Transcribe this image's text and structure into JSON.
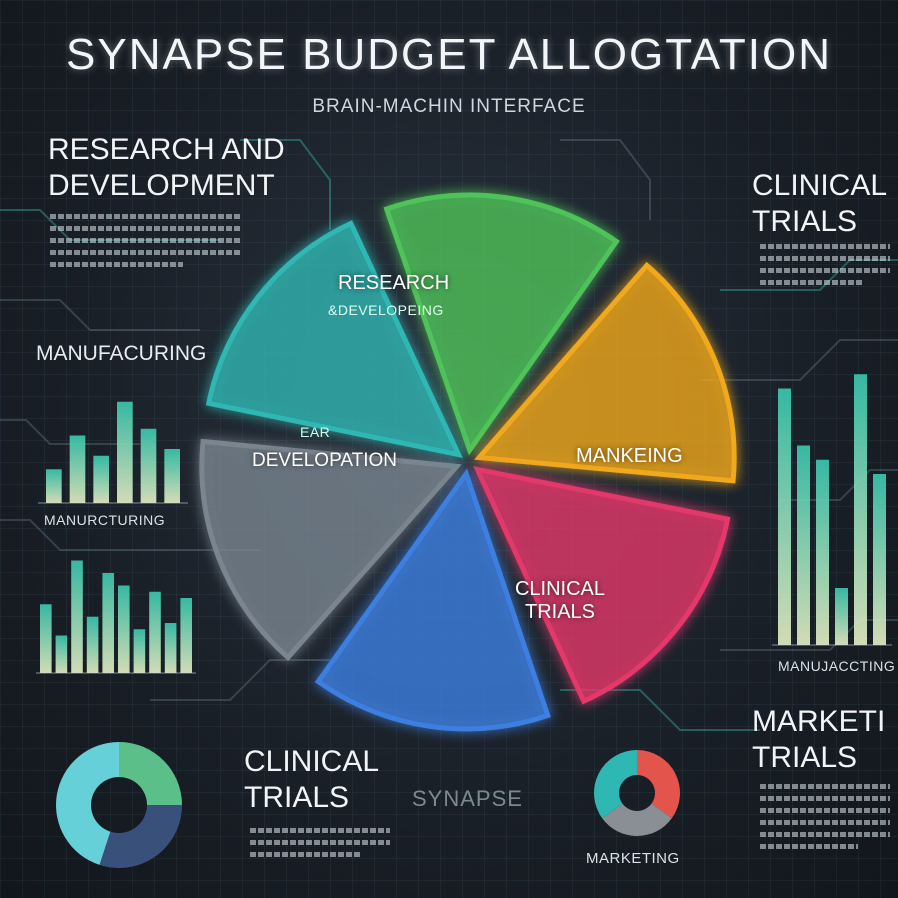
{
  "title": "SYNAPSE  BUDGET ALLOGTATION",
  "subtitle": "BRAIN-MACHIN INTERFACE",
  "labels": {
    "research_dev_heading": [
      "RESEARCH AND",
      "DEVELOPMENT"
    ],
    "clinical_trials_top": [
      "CLINICAL",
      "TRIALS"
    ],
    "manufacturing_left": "MANUFACURING",
    "manufacturing_bar_left": "MANURCTURING",
    "manufacturing_right": "MANUJACCTING",
    "marketing_trials": [
      "MARKETI",
      "TRIALS"
    ],
    "clinical_trials_bottom": [
      "CLINICAL",
      "TRIALS"
    ],
    "synapse_watermark": "SYNAPSE",
    "marketing_bottom": "MARKETING"
  },
  "colors": {
    "research": "#4fc35a",
    "orange": "#f0a81c",
    "marketing": "#e4386a",
    "clinical": "#3c7fe0",
    "circuit_slice": "#7a8590",
    "development": "#2fb7b3",
    "bar_gradient_top": "#39c9b0",
    "bar_gradient_bottom": "#e6f0c4"
  },
  "chart_data": [
    {
      "type": "pie",
      "slices": [
        {
          "label": "RESEARCH",
          "sublabel": "&DEVELOPEING",
          "value": 16.7
        },
        {
          "label": "",
          "value": 16.7
        },
        {
          "label": "MANKEING",
          "value": 16.7
        },
        {
          "label": "CLINICAL TRIALS",
          "value": 16.7
        },
        {
          "label": "",
          "value": 16.7
        },
        {
          "label": "DEVELOPATION",
          "sublabel": "EAR",
          "value": 16.5
        }
      ]
    },
    {
      "type": "bar",
      "label": "MANURCTURING",
      "values": [
        0.25,
        0.5,
        0.35,
        0.75,
        0.55,
        0.4
      ]
    },
    {
      "type": "bar",
      "values": [
        0.55,
        0.3,
        0.9,
        0.45,
        0.8,
        0.7,
        0.35,
        0.65,
        0.4,
        0.6
      ]
    },
    {
      "type": "bar",
      "label": "MANUJACCTING",
      "values": [
        0.9,
        0.7,
        0.65,
        0.2,
        0.95,
        0.6
      ]
    },
    {
      "type": "pie",
      "slices": [
        {
          "label": "",
          "value": 25,
          "color": "#5bbf8a"
        },
        {
          "label": "",
          "value": 30,
          "color": "#39507a"
        },
        {
          "label": "",
          "value": 45,
          "color": "#66d0d8"
        }
      ]
    },
    {
      "type": "pie",
      "slices": [
        {
          "label": "",
          "value": 35,
          "color": "#e2544c"
        },
        {
          "label": "",
          "value": 30,
          "color": "#8a8f96"
        },
        {
          "label": "",
          "value": 35,
          "color": "#2fb7b3"
        }
      ]
    }
  ]
}
